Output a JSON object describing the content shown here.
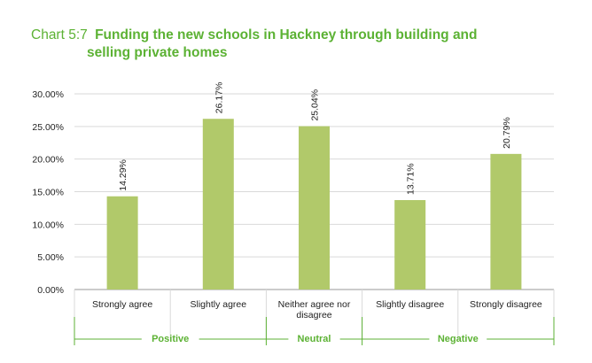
{
  "title": {
    "label": "Chart 5:7",
    "line1": "Funding the new schools in Hackney through building and",
    "line2": "selling private homes"
  },
  "chart_data": {
    "type": "bar",
    "categories": [
      "Strongly agree",
      "Slightly agree",
      "Neither agree nor disagree",
      "Slightly disagree",
      "Strongly disagree"
    ],
    "values": [
      14.29,
      26.17,
      25.04,
      13.71,
      20.79
    ],
    "data_labels": [
      "14.29%",
      "26.17%",
      "25.04%",
      "13.71%",
      "20.79%"
    ],
    "y_ticks": [
      "0.00%",
      "5.00%",
      "10.00%",
      "15.00%",
      "20.00%",
      "25.00%",
      "30.00%"
    ],
    "ylim": [
      0,
      30
    ],
    "groups": [
      {
        "name": "Positive",
        "categories": [
          "Strongly agree",
          "Slightly agree"
        ]
      },
      {
        "name": "Neutral",
        "categories": [
          "Neither agree nor disagree"
        ]
      },
      {
        "name": "Negative",
        "categories": [
          "Slightly disagree",
          "Strongly disagree"
        ]
      }
    ],
    "colors": {
      "bar": "#b1c96a",
      "accent": "#5cb234",
      "grid": "#d9d9d9"
    },
    "grid": true
  }
}
